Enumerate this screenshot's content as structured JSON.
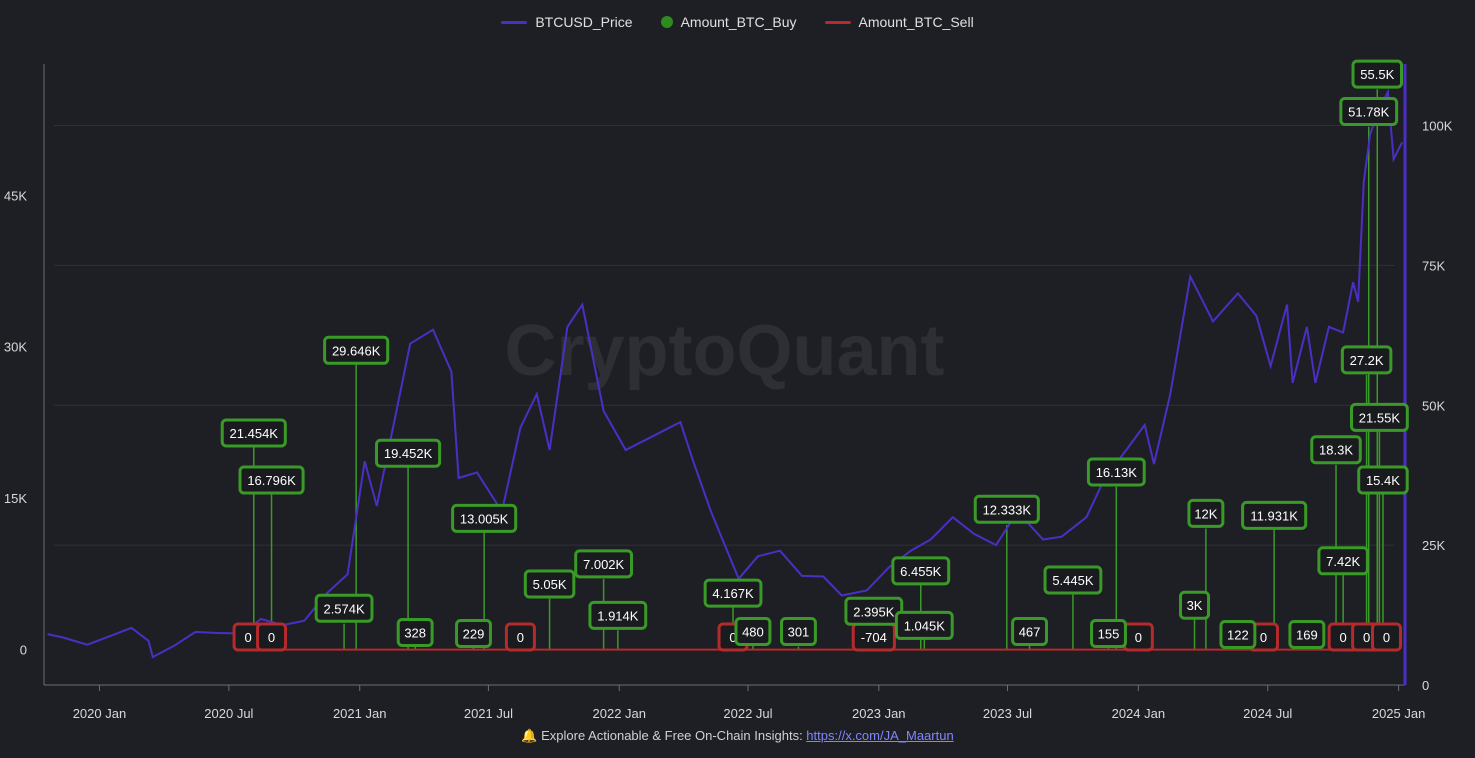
{
  "legend": {
    "price": {
      "label": "BTCUSD_Price",
      "color": "#4b2fc4"
    },
    "buy": {
      "label": "Amount_BTC_Buy",
      "color": "#2e8b1e"
    },
    "sell": {
      "label": "Amount_BTC_Sell",
      "color": "#b52a2a"
    }
  },
  "watermark": "CryptoQuant",
  "footer": {
    "icon": "bell-icon",
    "text": "Explore Actionable & Free On-Chain Insights: ",
    "link": "https://x.com/JA_Maartun"
  },
  "chart_data": {
    "type": "line",
    "x_ticks": [
      "2020 Jan",
      "2020 Jul",
      "2021 Jan",
      "2021 Jul",
      "2022 Jan",
      "2022 Jul",
      "2023 Jan",
      "2023 Jul",
      "2024 Jan",
      "2024 Jul",
      "2025 Jan"
    ],
    "x_range": [
      "2019-10-15",
      "2025-01-10"
    ],
    "y_left": {
      "ticks": [
        0,
        15000,
        30000,
        45000
      ],
      "tick_labels": [
        "0",
        "15K",
        "30K",
        "45K"
      ],
      "range": [
        -3500,
        58000
      ]
    },
    "y_right": {
      "ticks": [
        0,
        25000,
        50000,
        75000,
        100000
      ],
      "tick_labels": [
        "0",
        "25K",
        "50K",
        "75K",
        "100K"
      ],
      "range": [
        0,
        111000
      ]
    },
    "grid": true,
    "legend_position": "top-center",
    "series": [
      {
        "name": "BTCUSD_Price",
        "axis": "right",
        "x": [
          "2019-10-20",
          "2019-11-10",
          "2019-12-15",
          "2020-01-15",
          "2020-02-15",
          "2020-03-10",
          "2020-03-16",
          "2020-04-15",
          "2020-05-15",
          "2020-06-15",
          "2020-07-20",
          "2020-08-15",
          "2020-09-15",
          "2020-10-15",
          "2020-11-15",
          "2020-12-15",
          "2021-01-08",
          "2021-01-25",
          "2021-02-20",
          "2021-03-13",
          "2021-04-14",
          "2021-05-10",
          "2021-05-20",
          "2021-06-15",
          "2021-07-20",
          "2021-08-15",
          "2021-09-07",
          "2021-09-25",
          "2021-10-20",
          "2021-11-10",
          "2021-12-10",
          "2022-01-10",
          "2022-02-10",
          "2022-03-28",
          "2022-04-15",
          "2022-05-10",
          "2022-06-18",
          "2022-07-15",
          "2022-08-15",
          "2022-09-15",
          "2022-10-15",
          "2022-11-10",
          "2022-12-15",
          "2023-01-15",
          "2023-02-15",
          "2023-03-15",
          "2023-04-15",
          "2023-05-15",
          "2023-06-15",
          "2023-07-15",
          "2023-08-20",
          "2023-09-15",
          "2023-10-20",
          "2023-11-15",
          "2023-12-15",
          "2024-01-10",
          "2024-01-23",
          "2024-02-15",
          "2024-03-14",
          "2024-04-15",
          "2024-05-20",
          "2024-06-15",
          "2024-07-05",
          "2024-07-28",
          "2024-08-05",
          "2024-08-25",
          "2024-09-06",
          "2024-09-25",
          "2024-10-15",
          "2024-10-29",
          "2024-11-05",
          "2024-11-13",
          "2024-11-22",
          "2024-12-05",
          "2024-12-17",
          "2024-12-25",
          "2025-01-06"
        ],
        "y": [
          9100,
          8500,
          7200,
          8700,
          10200,
          7900,
          5000,
          7000,
          9500,
          9300,
          9200,
          11800,
          10700,
          11500,
          16300,
          19800,
          40000,
          32000,
          48000,
          61000,
          63500,
          56000,
          37000,
          38000,
          31000,
          46000,
          52000,
          42000,
          64000,
          68000,
          49000,
          42000,
          44000,
          47000,
          40000,
          31000,
          19000,
          23000,
          24000,
          19500,
          19400,
          16000,
          16900,
          21000,
          24000,
          26000,
          30000,
          27000,
          25000,
          31000,
          26000,
          26500,
          30000,
          37000,
          42000,
          46500,
          39500,
          52000,
          73000,
          65000,
          70000,
          66000,
          57000,
          68000,
          54000,
          64000,
          54000,
          64000,
          63000,
          72000,
          68500,
          90000,
          98500,
          103000,
          106000,
          94000,
          97000
        ]
      }
    ],
    "buy_bars": [
      {
        "x": "2020-08-05",
        "value": 21454,
        "label": "21.454K",
        "label_y": 21454
      },
      {
        "x": "2020-08-30",
        "value": 16796,
        "label": "16.796K",
        "label_y": 16796
      },
      {
        "x": "2020-12-10",
        "value": 2574,
        "label": "2.574K",
        "label_y": 4100
      },
      {
        "x": "2020-12-27",
        "value": 29646,
        "label": "29.646K",
        "label_y": 29646
      },
      {
        "x": "2021-03-10",
        "value": 19452,
        "label": "19.452K",
        "label_y": 19452
      },
      {
        "x": "2021-03-20",
        "value": 328,
        "label": "328",
        "label_y": 1700
      },
      {
        "x": "2021-06-10",
        "value": 229,
        "label": "229",
        "label_y": 1600
      },
      {
        "x": "2021-06-25",
        "value": 13005,
        "label": "13.005K",
        "label_y": 13005
      },
      {
        "x": "2021-09-25",
        "value": 5050,
        "label": "5.05K",
        "label_y": 6500
      },
      {
        "x": "2021-12-10",
        "value": 7002,
        "label": "7.002K",
        "label_y": 8500
      },
      {
        "x": "2021-12-30",
        "value": 1914,
        "label": "1.914K",
        "label_y": 3400
      },
      {
        "x": "2022-06-10",
        "value": 4167,
        "label": "4.167K",
        "label_y": 5600
      },
      {
        "x": "2022-07-08",
        "value": 480,
        "label": "480",
        "label_y": 1800
      },
      {
        "x": "2022-09-10",
        "value": 301,
        "label": "301",
        "label_y": 1800
      },
      {
        "x": "2022-12-25",
        "value": 2395,
        "label": "2.395K",
        "label_y": 3800
      },
      {
        "x": "2023-03-01",
        "value": 6455,
        "label": "6.455K",
        "label_y": 7800
      },
      {
        "x": "2023-03-06",
        "value": 1045,
        "label": "1.045K",
        "label_y": 2400
      },
      {
        "x": "2023-06-30",
        "value": 12333,
        "label": "12.333K",
        "label_y": 13900
      },
      {
        "x": "2023-08-01",
        "value": 467,
        "label": "467",
        "label_y": 1800
      },
      {
        "x": "2023-10-01",
        "value": 5445,
        "label": "5.445K",
        "label_y": 6900
      },
      {
        "x": "2023-11-20",
        "value": 155,
        "label": "155",
        "label_y": 1600
      },
      {
        "x": "2023-12-01",
        "value": 16130,
        "label": "16.13K",
        "label_y": 17600
      },
      {
        "x": "2024-03-20",
        "value": 3000,
        "label": "3K",
        "label_y": 4400
      },
      {
        "x": "2024-04-05",
        "value": 12000,
        "label": "12K",
        "label_y": 13500
      },
      {
        "x": "2024-05-20",
        "value": 122,
        "label": "122",
        "label_y": 1500
      },
      {
        "x": "2024-07-10",
        "value": 11931,
        "label": "11.931K",
        "label_y": 13300
      },
      {
        "x": "2024-08-25",
        "value": 169,
        "label": "169",
        "label_y": 1500
      },
      {
        "x": "2024-10-05",
        "value": 18300,
        "label": "18.3K",
        "label_y": 19800
      },
      {
        "x": "2024-10-15",
        "value": 7420,
        "label": "7.42K",
        "label_y": 8800
      },
      {
        "x": "2024-11-17",
        "value": 27200,
        "label": "27.2K",
        "label_y": 28700
      },
      {
        "x": "2024-11-20",
        "value": 51780,
        "label": "51.78K",
        "label_y": 53300
      },
      {
        "x": "2024-12-02",
        "value": 55500,
        "label": "55.5K",
        "label_y": 57000
      },
      {
        "x": "2024-12-05",
        "value": 21550,
        "label": "21.55K",
        "label_y": 23000
      },
      {
        "x": "2024-12-10",
        "value": 15400,
        "label": "15.4K",
        "label_y": 16800
      }
    ],
    "sell_bars": [
      {
        "x": "2020-07-28",
        "value": 0,
        "label": "0"
      },
      {
        "x": "2020-08-30",
        "value": 0,
        "label": "0"
      },
      {
        "x": "2021-08-15",
        "value": 0,
        "label": "0"
      },
      {
        "x": "2022-06-10",
        "value": 0,
        "label": "0"
      },
      {
        "x": "2022-12-25",
        "value": -704,
        "label": "-704"
      },
      {
        "x": "2024-01-01",
        "value": 0,
        "label": "0"
      },
      {
        "x": "2024-06-25",
        "value": 0,
        "label": "0"
      },
      {
        "x": "2024-10-15",
        "value": 0,
        "label": "0"
      },
      {
        "x": "2024-11-17",
        "value": 0,
        "label": "0"
      },
      {
        "x": "2024-12-15",
        "value": 0,
        "label": "0"
      }
    ]
  }
}
